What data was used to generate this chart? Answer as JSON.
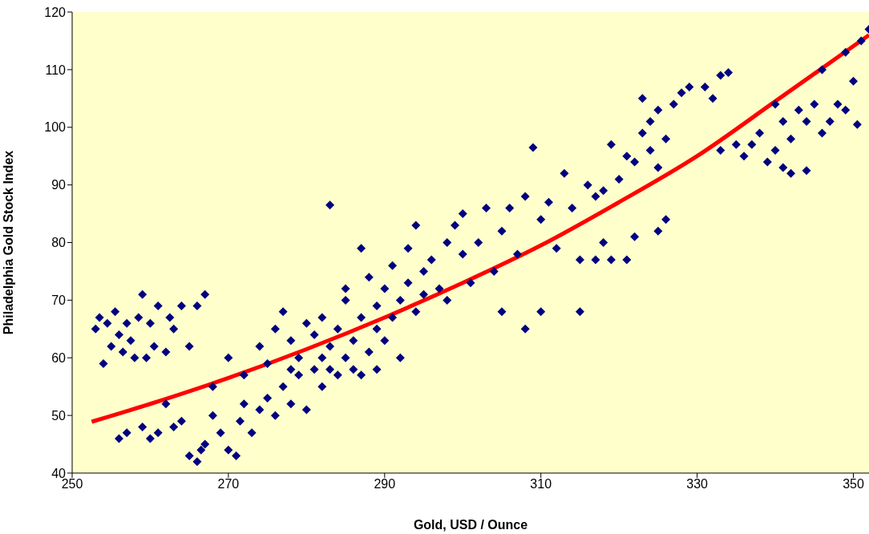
{
  "chart_data": {
    "type": "scatter",
    "xlabel": "Gold, USD /  Ounce",
    "ylabel": "Philadelphia Gold Stock Index",
    "xlim": [
      250,
      352
    ],
    "ylim": [
      40,
      120
    ],
    "xticks": [
      250,
      270,
      290,
      310,
      330,
      350
    ],
    "yticks": [
      40,
      50,
      60,
      70,
      80,
      90,
      100,
      110,
      120
    ],
    "grid": false,
    "marker": "diamond",
    "series": [
      {
        "color": "#000080",
        "x": [
          253,
          253.5,
          254,
          254.5,
          255,
          255.5,
          256,
          256.5,
          257,
          257.5,
          258,
          258.5,
          259,
          259.5,
          260,
          260.5,
          261,
          262,
          262.5,
          263,
          264,
          265,
          266,
          267,
          256,
          257,
          259,
          260,
          261,
          262,
          263,
          264,
          265,
          266,
          266.5,
          267,
          268,
          269,
          270,
          271,
          271.5,
          272,
          273,
          274,
          275,
          276,
          277,
          278,
          279,
          280,
          281,
          282,
          283,
          268,
          270,
          272,
          274,
          275,
          276,
          277,
          278,
          280,
          282,
          283,
          284,
          285,
          285,
          286,
          287,
          287,
          288,
          288,
          289,
          289,
          290,
          290,
          291,
          291,
          292,
          292,
          293,
          293,
          294,
          294,
          295,
          295,
          296,
          297,
          298,
          298,
          299,
          300,
          300,
          283,
          285,
          287,
          284,
          286,
          289,
          282,
          281,
          279,
          278,
          301,
          302,
          303,
          304,
          305,
          305,
          306,
          307,
          308,
          308,
          309,
          310,
          310,
          311,
          312,
          313,
          314,
          315,
          315,
          316,
          317,
          318,
          318,
          319,
          319,
          320,
          321,
          322,
          323,
          322,
          323,
          324,
          324,
          325,
          325,
          326,
          327,
          328,
          329,
          326,
          325,
          321,
          317,
          331,
          332,
          333,
          334,
          333,
          335,
          336,
          337,
          338,
          339,
          340,
          340,
          341,
          342,
          342,
          343,
          344,
          345,
          346,
          347,
          348,
          349,
          349,
          350,
          350.5,
          351,
          352,
          346,
          344,
          341
        ],
        "values": [
          65,
          67,
          59,
          66,
          62,
          68,
          64,
          61,
          66,
          63,
          60,
          67,
          71,
          60,
          66,
          62,
          69,
          61,
          67,
          65,
          69,
          62,
          69,
          71,
          46,
          47,
          48,
          46,
          47,
          52,
          48,
          49,
          43,
          42,
          44,
          45,
          50,
          47,
          44,
          43,
          49,
          52,
          47,
          51,
          53,
          50,
          55,
          52,
          57,
          51,
          58,
          55,
          58,
          55,
          60,
          57,
          62,
          59,
          65,
          68,
          63,
          66,
          60,
          62,
          65,
          60,
          70,
          63,
          67,
          57,
          61,
          74,
          65,
          69,
          63,
          72,
          67,
          76,
          70,
          60,
          73,
          79,
          68,
          83,
          75,
          71,
          77,
          72,
          80,
          70,
          83,
          78,
          85,
          86.5,
          72,
          79,
          57,
          58,
          58,
          67,
          64,
          60,
          58,
          73,
          80,
          86,
          75,
          82,
          68,
          86,
          78,
          88,
          65,
          96.5,
          84,
          68,
          87,
          79,
          92,
          86,
          77,
          68,
          90,
          88,
          89,
          80,
          97,
          77,
          91,
          95,
          81,
          99,
          94,
          105,
          96,
          101,
          103,
          93,
          98,
          104,
          106,
          107,
          84,
          82,
          77,
          77,
          107,
          105,
          109,
          109.5,
          96,
          97,
          95,
          97,
          99,
          94,
          96,
          104,
          101,
          92,
          98,
          103,
          101,
          104,
          99,
          101,
          104,
          103,
          113,
          108,
          100.5,
          115,
          117,
          110,
          92.5,
          93
        ]
      },
      {
        "type": "line",
        "marker": "none",
        "color": "#ff0000",
        "x": [
          252.5,
          260,
          270,
          280,
          290,
          300,
          310,
          320,
          330,
          340,
          352
        ],
        "values": [
          48.9,
          52,
          56.5,
          61.5,
          67,
          73,
          79.5,
          87,
          95,
          104.5,
          116
        ]
      }
    ]
  }
}
